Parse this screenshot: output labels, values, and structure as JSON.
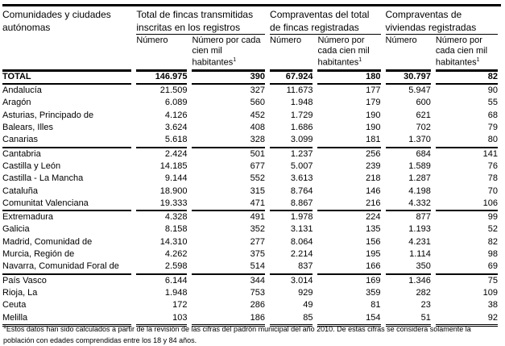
{
  "header": {
    "region_label": "Comunidades y ciudades autónomas",
    "groups": [
      "Total de fincas transmitidas inscritas en los registros",
      "Compraventas del total de fincas registradas",
      "Compraventas de viviendas registradas"
    ],
    "sub_numero": "Número",
    "sub_rate_1": "Número por cada cien mil habitantes",
    "sub_rate_2": "Número por cada cien mil habitantes",
    "footnote_mark": "1"
  },
  "total": {
    "name": "TOTAL",
    "values": [
      "146.975",
      "390",
      "67.924",
      "180",
      "30.797",
      "82"
    ]
  },
  "rows": [
    {
      "name": "Andalucía",
      "values": [
        "21.509",
        "327",
        "11.673",
        "177",
        "5.947",
        "90"
      ]
    },
    {
      "name": "Aragón",
      "values": [
        "6.089",
        "560",
        "1.948",
        "179",
        "600",
        "55"
      ]
    },
    {
      "name": "Asturias, Principado de",
      "values": [
        "4.126",
        "452",
        "1.729",
        "190",
        "621",
        "68"
      ]
    },
    {
      "name": "Balears, Illes",
      "values": [
        "3.624",
        "408",
        "1.686",
        "190",
        "702",
        "79"
      ]
    },
    {
      "name": "Canarias",
      "values": [
        "5.618",
        "328",
        "3.099",
        "181",
        "1.370",
        "80"
      ]
    },
    {
      "name": "Cantabria",
      "values": [
        "2.424",
        "501",
        "1.237",
        "256",
        "684",
        "141"
      ]
    },
    {
      "name": "Castilla y León",
      "values": [
        "14.185",
        "677",
        "5.007",
        "239",
        "1.589",
        "76"
      ]
    },
    {
      "name": "Castilla - La Mancha",
      "values": [
        "9.144",
        "552",
        "3.613",
        "218",
        "1.287",
        "78"
      ]
    },
    {
      "name": "Cataluña",
      "values": [
        "18.900",
        "315",
        "8.764",
        "146",
        "4.198",
        "70"
      ]
    },
    {
      "name": "Comunitat Valenciana",
      "values": [
        "19.333",
        "471",
        "8.867",
        "216",
        "4.332",
        "106"
      ]
    },
    {
      "name": "Extremadura",
      "values": [
        "4.328",
        "491",
        "1.978",
        "224",
        "877",
        "99"
      ]
    },
    {
      "name": "Galicia",
      "values": [
        "8.158",
        "352",
        "3.131",
        "135",
        "1.193",
        "52"
      ]
    },
    {
      "name": "Madrid, Comunidad de",
      "values": [
        "14.310",
        "277",
        "8.064",
        "156",
        "4.231",
        "82"
      ]
    },
    {
      "name": "Murcia, Región de",
      "values": [
        "4.262",
        "375",
        "2.214",
        "195",
        "1.114",
        "98"
      ]
    },
    {
      "name": "Navarra, Comunidad Foral de",
      "values": [
        "2.598",
        "514",
        "837",
        "166",
        "350",
        "69"
      ]
    },
    {
      "name": "País Vasco",
      "values": [
        "6.144",
        "344",
        "3.014",
        "169",
        "1.346",
        "75"
      ]
    },
    {
      "name": "Rioja, La",
      "values": [
        "1.948",
        "753",
        "929",
        "359",
        "282",
        "109"
      ]
    },
    {
      "name": "Ceuta",
      "values": [
        "172",
        "286",
        "49",
        "81",
        "23",
        "38"
      ]
    },
    {
      "name": "Melilla",
      "values": [
        "103",
        "186",
        "85",
        "154",
        "51",
        "92"
      ]
    }
  ],
  "footnote": {
    "mark": "1",
    "text": "Estos datos han sido calculados a partir de la revisión de las cifras del padrón municipal del año 2010. De estas cifras se considera solamente la población con edades comprendidas entre los 18 y 84 años."
  }
}
